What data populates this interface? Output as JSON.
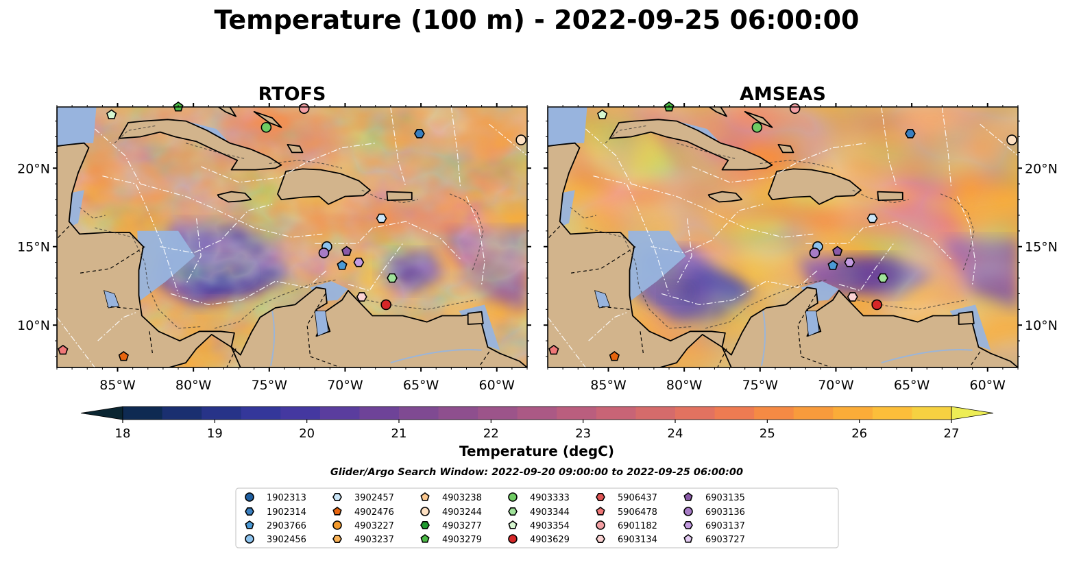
{
  "figure": {
    "title": "Temperature (100 m) - 2022-09-25 06:00:00",
    "search_window": "Glider/Argo Search Window: 2022-09-20 09:00:00 to 2022-09-25 06:00:00"
  },
  "panels": [
    {
      "title": "RTOFS",
      "model": "rtofs"
    },
    {
      "title": "AMSEAS",
      "model": "amseas"
    }
  ],
  "map_extent": {
    "lon_min": -89,
    "lon_max": -58,
    "lat_min": 7.3,
    "lat_max": 23.9
  },
  "lon_ticks": [
    {
      "lon": -85,
      "label": "85°W"
    },
    {
      "lon": -80,
      "label": "80°W"
    },
    {
      "lon": -75,
      "label": "75°W"
    },
    {
      "lon": -70,
      "label": "70°W"
    },
    {
      "lon": -65,
      "label": "65°W"
    },
    {
      "lon": -60,
      "label": "60°W"
    }
  ],
  "lat_ticks": [
    {
      "lat": 20,
      "label": "20°N"
    },
    {
      "lat": 15,
      "label": "15°N"
    },
    {
      "lat": 10,
      "label": "10°N"
    }
  ],
  "colorbar": {
    "label": "Temperature (degC)",
    "min": 17.5,
    "max": 27.5,
    "step": 0.5,
    "colors": [
      "#0a2531",
      "#0e2a52",
      "#1a2f70",
      "#273388",
      "#34379a",
      "#4438a0",
      "#5a3d9e",
      "#6e4398",
      "#7f4a92",
      "#8e4f8e",
      "#9c548a",
      "#ab5985",
      "#ba5e7e",
      "#c86476",
      "#d56b6b",
      "#e27260",
      "#ee7b52",
      "#f58a44",
      "#f89b3c",
      "#fbac38",
      "#fcbe3a",
      "#f6d141",
      "#eded55"
    ],
    "ticks": [
      {
        "value": 18,
        "label": "18"
      },
      {
        "value": 19,
        "label": "19"
      },
      {
        "value": 20,
        "label": "20"
      },
      {
        "value": 21,
        "label": "21"
      },
      {
        "value": 22,
        "label": "22"
      },
      {
        "value": 23,
        "label": "23"
      },
      {
        "value": 24,
        "label": "24"
      },
      {
        "value": 25,
        "label": "25"
      },
      {
        "value": 26,
        "label": "26"
      },
      {
        "value": 27,
        "label": "27"
      }
    ]
  },
  "land_color": "#d2b48c",
  "shelf_color": "#98b4de",
  "floats": [
    {
      "id": "1902313",
      "marker": "circle",
      "color": "#1f5fa0",
      "lon": null,
      "lat": null
    },
    {
      "id": "1902314",
      "marker": "hexagon",
      "color": "#3a7fc0",
      "lon": -65.1,
      "lat": 22.2
    },
    {
      "id": "2903766",
      "marker": "pentagon",
      "color": "#4b9ad6",
      "lon": -70.2,
      "lat": 13.8
    },
    {
      "id": "3902456",
      "marker": "circle",
      "color": "#8dc3ee",
      "lon": -71.2,
      "lat": 15.0
    },
    {
      "id": "3902457",
      "marker": "hexagon",
      "color": "#cbe6f8",
      "lon": -67.6,
      "lat": 16.8
    },
    {
      "id": "4902476",
      "marker": "pentagon",
      "color": "#e8650e",
      "lon": -84.6,
      "lat": 8.0
    },
    {
      "id": "4903227",
      "marker": "circle",
      "color": "#f39a2c",
      "lon": null,
      "lat": null
    },
    {
      "id": "4903237",
      "marker": "hexagon",
      "color": "#f9b257",
      "lon": null,
      "lat": null
    },
    {
      "id": "4903238",
      "marker": "pentagon",
      "color": "#fbc88f",
      "lon": null,
      "lat": null
    },
    {
      "id": "4903244",
      "marker": "circle",
      "color": "#fde0c2",
      "lon": -58.4,
      "lat": 21.8
    },
    {
      "id": "4903277",
      "marker": "hexagon",
      "color": "#1f9a2e",
      "lon": null,
      "lat": null
    },
    {
      "id": "4903279",
      "marker": "pentagon",
      "color": "#4cbb46",
      "lon": -81.0,
      "lat": 23.9
    },
    {
      "id": "4903333",
      "marker": "circle",
      "color": "#6fcc63",
      "lon": -75.2,
      "lat": 22.6
    },
    {
      "id": "4903344",
      "marker": "hexagon",
      "color": "#a0e39a",
      "lon": -66.9,
      "lat": 13.0
    },
    {
      "id": "4903354",
      "marker": "pentagon",
      "color": "#d6f7d0",
      "lon": -85.4,
      "lat": 23.4
    },
    {
      "id": "4903629",
      "marker": "circle",
      "color": "#d62728",
      "lon": -67.3,
      "lat": 11.3
    },
    {
      "id": "5906437",
      "marker": "hexagon",
      "color": "#e05555",
      "lon": null,
      "lat": null
    },
    {
      "id": "5906478",
      "marker": "pentagon",
      "color": "#f07878",
      "lon": -88.6,
      "lat": 8.4
    },
    {
      "id": "6901182",
      "marker": "circle",
      "color": "#f4a0a4",
      "lon": -72.7,
      "lat": 23.8
    },
    {
      "id": "6903134",
      "marker": "hexagon",
      "color": "#fbd3d3",
      "lon": -68.9,
      "lat": 11.8
    },
    {
      "id": "6903135",
      "marker": "pentagon",
      "color": "#8a5aa8",
      "lon": -69.9,
      "lat": 14.7
    },
    {
      "id": "6903136",
      "marker": "circle",
      "color": "#a77cc6",
      "lon": -71.4,
      "lat": 14.6
    },
    {
      "id": "6903137",
      "marker": "hexagon",
      "color": "#c39be0",
      "lon": -69.1,
      "lat": 14.0
    },
    {
      "id": "6903727",
      "marker": "pentagon",
      "color": "#e3cbf2",
      "lon": null,
      "lat": null
    }
  ]
}
